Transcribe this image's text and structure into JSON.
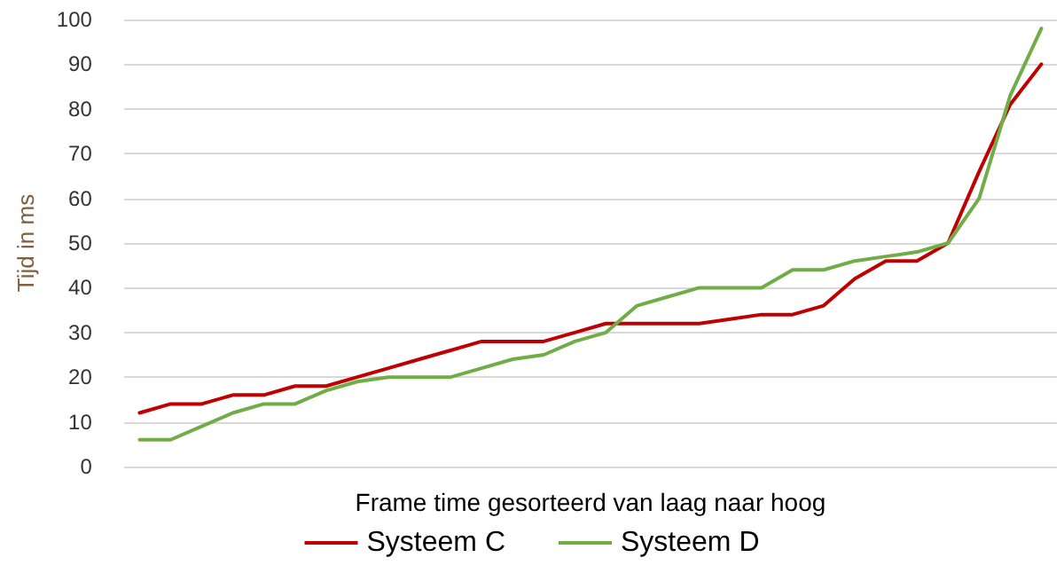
{
  "chart_data": {
    "type": "line",
    "xlabel": "Frame time gesorteerd van laag naar hoog",
    "ylabel": "Tijd in ms",
    "categories": [
      null,
      null,
      null,
      null,
      null,
      null,
      null,
      null,
      null,
      null,
      null,
      null,
      null,
      null,
      null,
      null,
      null,
      null,
      null,
      null,
      null,
      null,
      null,
      null,
      null,
      null,
      null,
      null,
      null,
      null
    ],
    "series": [
      {
        "name": "Systeem C",
        "color": "#c00000",
        "values": [
          12,
          14,
          14,
          16,
          16,
          18,
          18,
          20,
          22,
          24,
          26,
          28,
          28,
          28,
          30,
          32,
          32,
          32,
          32,
          33,
          34,
          34,
          36,
          42,
          46,
          46,
          50,
          66,
          81,
          90
        ]
      },
      {
        "name": "Systeem D",
        "color": "#70ad47",
        "values": [
          6,
          6,
          9,
          12,
          14,
          14,
          17,
          19,
          20,
          20,
          20,
          22,
          24,
          25,
          28,
          30,
          36,
          38,
          40,
          40,
          40,
          44,
          44,
          46,
          47,
          48,
          50,
          60,
          83,
          98
        ]
      }
    ],
    "ylim": [
      0,
      100
    ],
    "yticks": [
      0,
      10,
      20,
      30,
      40,
      50,
      60,
      70,
      80,
      90,
      100
    ],
    "grid": "y",
    "legend": "bottom",
    "marker": "none",
    "line_style": "solid"
  }
}
